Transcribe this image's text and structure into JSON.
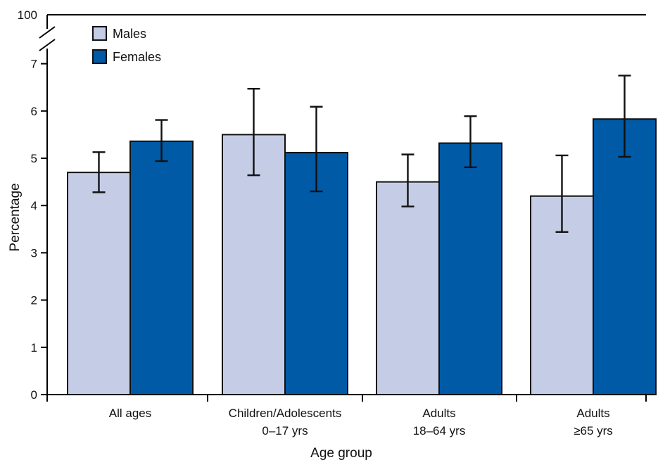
{
  "chart_data": {
    "type": "bar",
    "xlabel": "Age group",
    "ylabel": "Percentage",
    "ylim": [
      0,
      7
    ],
    "y_ticks": [
      0,
      1,
      2,
      3,
      4,
      5,
      6,
      7
    ],
    "y_axis_break": true,
    "y_top_tick_label": "100",
    "categories": [
      [
        "All ages"
      ],
      [
        "Children/Adolescents",
        "0–17 yrs"
      ],
      [
        "Adults",
        "18–64 yrs"
      ],
      [
        "Adults",
        "≥65 yrs"
      ]
    ],
    "series": [
      {
        "name": "Males",
        "color": "#c5cde6",
        "values": [
          4.7,
          5.5,
          4.5,
          4.2
        ],
        "ci_low": [
          4.28,
          4.64,
          3.98,
          3.44
        ],
        "ci_high": [
          5.13,
          6.47,
          5.08,
          5.06
        ]
      },
      {
        "name": "Females",
        "color": "#005aa6",
        "values": [
          5.36,
          5.12,
          5.32,
          5.83
        ],
        "ci_low": [
          4.94,
          4.3,
          4.81,
          5.03
        ],
        "ci_high": [
          5.81,
          6.09,
          5.89,
          6.75
        ]
      }
    ],
    "legend_position": "top-left",
    "grid": false
  }
}
